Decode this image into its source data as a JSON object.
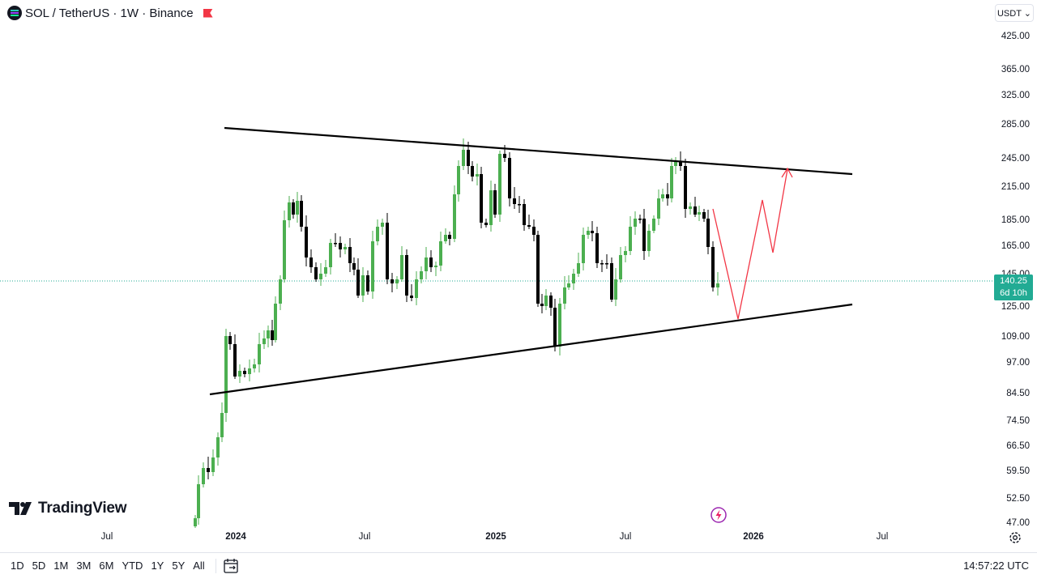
{
  "header": {
    "title": "SOL / TetherUS · 1W · Binance",
    "currency_button": "USDT ⌄"
  },
  "price_axis": {
    "labels": [
      "425.00",
      "365.00",
      "325.00",
      "285.00",
      "245.00",
      "215.00",
      "185.00",
      "165.00",
      "145.00",
      "125.00",
      "109.00",
      "97.00",
      "84.50",
      "74.50",
      "66.50",
      "59.50",
      "52.50",
      "47.00"
    ],
    "current_price": "140.25",
    "countdown": "6d 10h"
  },
  "time_axis": {
    "labels": [
      "Jul",
      "2024",
      "Jul",
      "2025",
      "Jul",
      "2026",
      "Jul"
    ]
  },
  "bottom_bar": {
    "ranges": [
      "1D",
      "5D",
      "1M",
      "3M",
      "6M",
      "YTD",
      "1Y",
      "5Y",
      "All"
    ],
    "clock": "14:57:22 UTC"
  },
  "brand": {
    "name": "TradingView"
  },
  "colors": {
    "up": "#4caf50",
    "down": "#000000",
    "current_line": "#22ab94",
    "projection": "#f23645",
    "trendline": "#000000"
  },
  "icons": {
    "symbol": "solana-icon",
    "flag": "flag-icon",
    "settings": "gear-icon",
    "calendar": "calendar-range-icon",
    "bolt": "lightning-icon"
  }
}
